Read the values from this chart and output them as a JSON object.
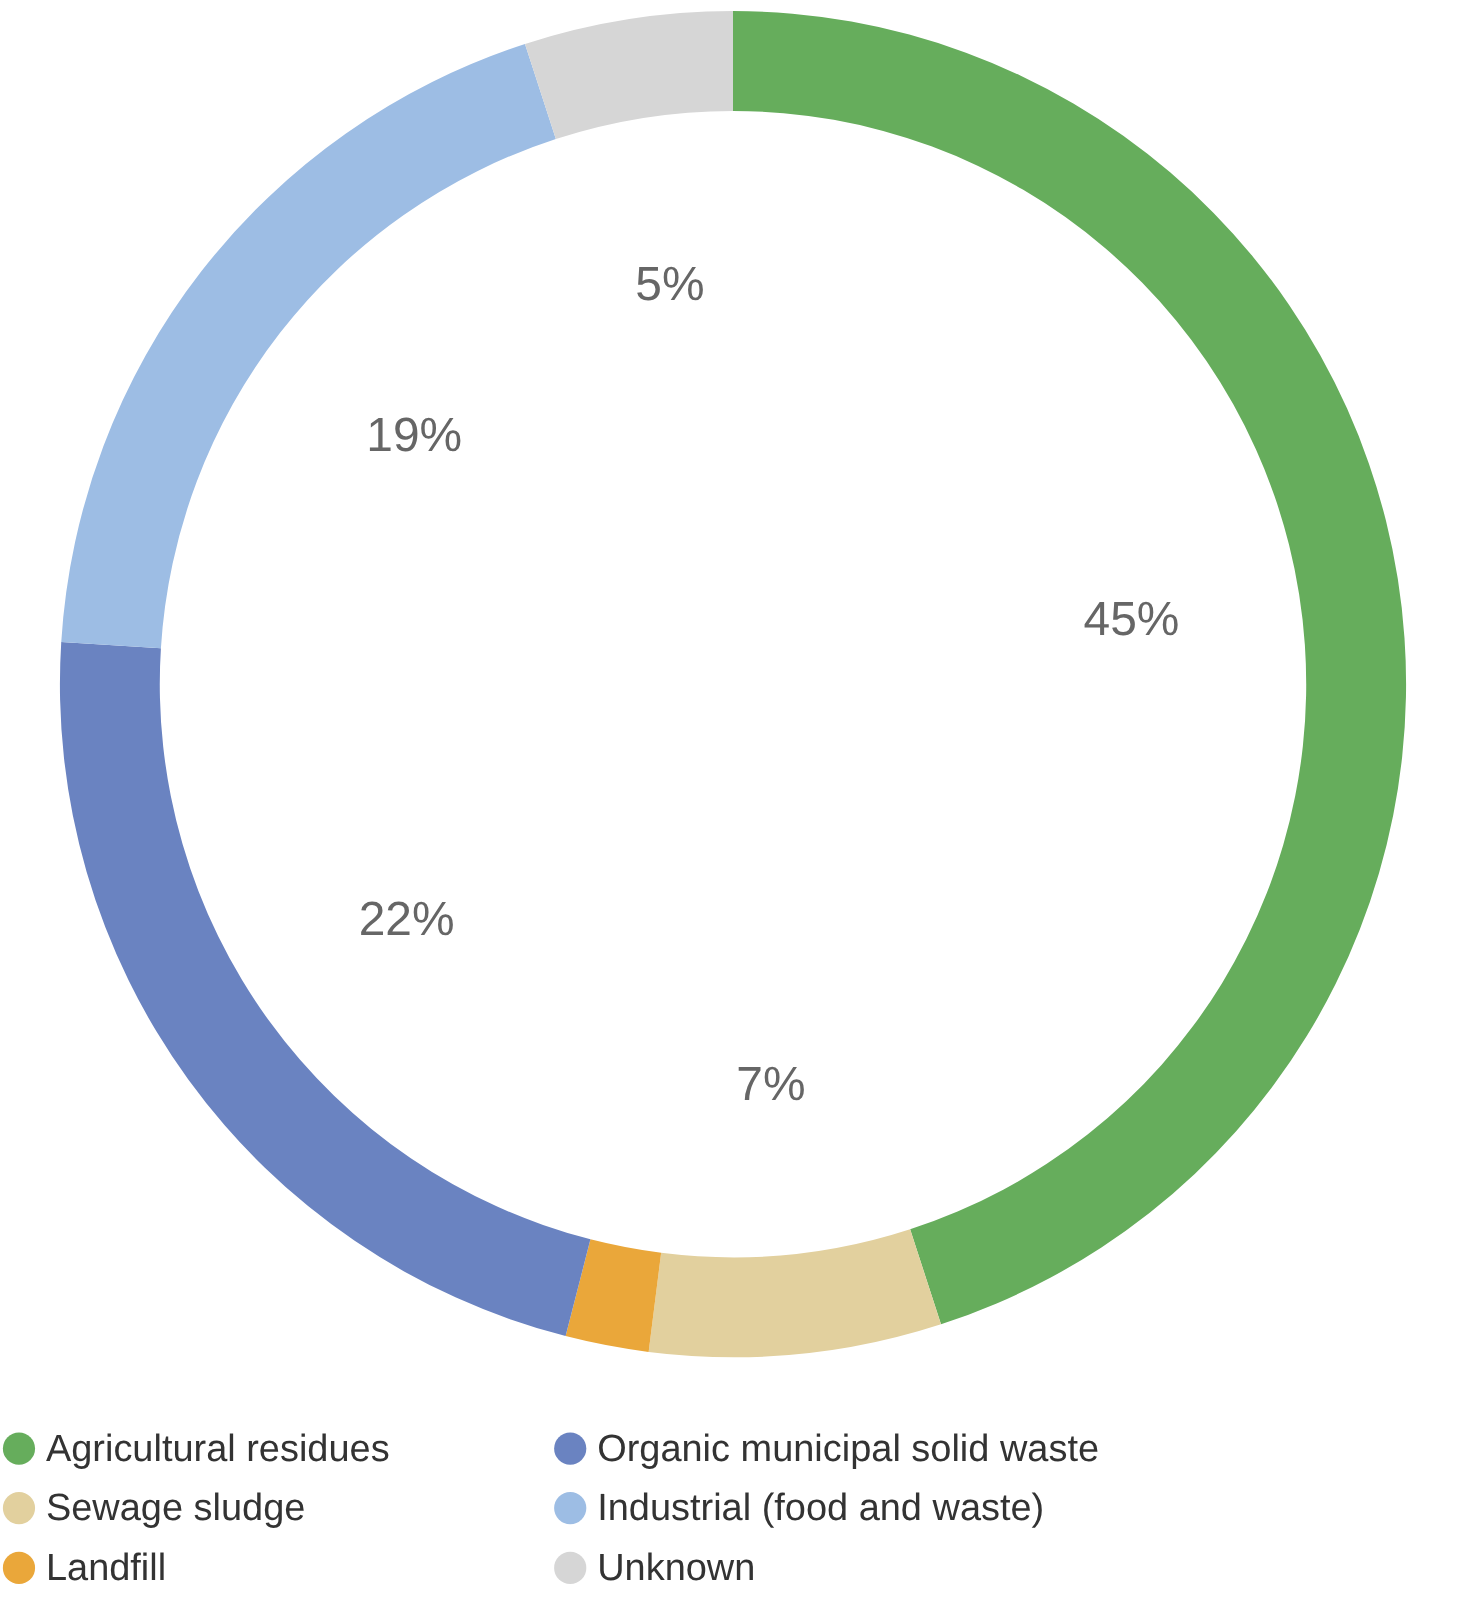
{
  "chart_data": {
    "type": "donut",
    "categories": [
      "Agricultural residues",
      "Sewage sludge",
      "Landfill",
      "Organic municipal solid waste",
      "Industrial (food and waste)",
      "Unknown"
    ],
    "values": [
      45,
      7,
      2,
      22,
      19,
      5
    ],
    "value_labels": [
      "45%",
      "7%",
      null,
      "22%",
      "19%",
      "5%"
    ],
    "colors": [
      "#66ad5c",
      "#e2d09e",
      "#eaa73a",
      "#6a83c1",
      "#9dbde4",
      "#d6d6d6"
    ],
    "legend": "bottom"
  }
}
